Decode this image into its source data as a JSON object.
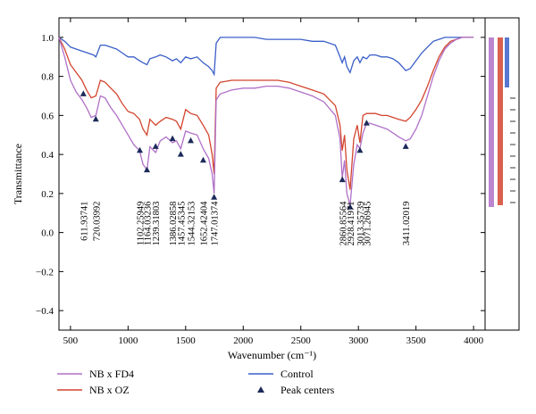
{
  "chart_data": {
    "type": "line",
    "xlabel": "Wavenumber (cm⁻¹)",
    "ylabel": "Transmittance",
    "xlim": [
      400,
      4100
    ],
    "ylim": [
      -0.5,
      1.1
    ],
    "xticks": [
      "500",
      "1000",
      "1500",
      "2000",
      "2500",
      "3000",
      "3500",
      "4000"
    ],
    "yticks": [
      "−0.4",
      "−0.2",
      "0.0",
      "0.2",
      "0.4",
      "0.6",
      "0.8",
      "1.0"
    ],
    "legend_position": "bottom",
    "series": [
      {
        "name": "Control",
        "color": "#3a5fc8",
        "x": [
          400,
          450,
          500,
          550,
          600,
          650,
          700,
          720,
          760,
          800,
          850,
          900,
          950,
          1000,
          1050,
          1100,
          1130,
          1164,
          1190,
          1239,
          1280,
          1330,
          1386,
          1420,
          1457,
          1500,
          1544,
          1600,
          1652,
          1700,
          1730,
          1747,
          1765,
          1800,
          1900,
          2000,
          2100,
          2200,
          2300,
          2400,
          2500,
          2600,
          2700,
          2800,
          2840,
          2860,
          2880,
          2900,
          2928,
          2960,
          2990,
          3013,
          3040,
          3071,
          3100,
          3150,
          3200,
          3250,
          3300,
          3350,
          3411,
          3450,
          3500,
          3550,
          3600,
          3650,
          3700,
          3750,
          3800,
          3850,
          3900,
          3950,
          4000
        ],
        "y": [
          1.0,
          0.98,
          0.95,
          0.94,
          0.93,
          0.92,
          0.91,
          0.9,
          0.96,
          0.96,
          0.95,
          0.94,
          0.92,
          0.9,
          0.9,
          0.88,
          0.87,
          0.86,
          0.89,
          0.9,
          0.91,
          0.9,
          0.88,
          0.89,
          0.87,
          0.9,
          0.89,
          0.9,
          0.87,
          0.85,
          0.83,
          0.81,
          0.97,
          1.0,
          1.0,
          1.0,
          1.0,
          0.99,
          0.99,
          0.99,
          0.99,
          0.98,
          0.98,
          0.96,
          0.9,
          0.87,
          0.9,
          0.85,
          0.82,
          0.88,
          0.9,
          0.87,
          0.9,
          0.89,
          0.91,
          0.91,
          0.9,
          0.9,
          0.89,
          0.87,
          0.83,
          0.84,
          0.88,
          0.92,
          0.95,
          0.98,
          0.99,
          1.0,
          1.0,
          1.0,
          1.0,
          1.0,
          1.0
        ]
      },
      {
        "name": "NB x OZ",
        "color": "#d2452e",
        "x": [
          400,
          450,
          500,
          550,
          600,
          640,
          680,
          720,
          760,
          800,
          850,
          900,
          950,
          1000,
          1050,
          1100,
          1130,
          1164,
          1190,
          1239,
          1280,
          1330,
          1386,
          1420,
          1457,
          1500,
          1544,
          1600,
          1652,
          1700,
          1730,
          1747,
          1765,
          1800,
          1900,
          2000,
          2100,
          2200,
          2300,
          2400,
          2500,
          2600,
          2700,
          2800,
          2840,
          2860,
          2880,
          2900,
          2928,
          2960,
          2990,
          3013,
          3040,
          3071,
          3100,
          3150,
          3200,
          3250,
          3300,
          3350,
          3411,
          3450,
          3500,
          3550,
          3600,
          3650,
          3700,
          3750,
          3800,
          3850,
          3900,
          3950,
          4000
        ],
        "y": [
          1.0,
          0.94,
          0.86,
          0.82,
          0.78,
          0.73,
          0.69,
          0.7,
          0.78,
          0.77,
          0.74,
          0.71,
          0.66,
          0.62,
          0.61,
          0.58,
          0.53,
          0.5,
          0.58,
          0.55,
          0.57,
          0.59,
          0.58,
          0.57,
          0.53,
          0.63,
          0.61,
          0.6,
          0.55,
          0.5,
          0.4,
          0.3,
          0.74,
          0.77,
          0.78,
          0.78,
          0.78,
          0.78,
          0.78,
          0.77,
          0.75,
          0.73,
          0.71,
          0.65,
          0.55,
          0.42,
          0.5,
          0.32,
          0.22,
          0.48,
          0.55,
          0.46,
          0.6,
          0.61,
          0.61,
          0.61,
          0.6,
          0.6,
          0.59,
          0.58,
          0.57,
          0.59,
          0.63,
          0.68,
          0.75,
          0.83,
          0.9,
          0.95,
          0.98,
          0.99,
          1.0,
          1.0,
          1.0
        ]
      },
      {
        "name": "NB x FD4",
        "color": "#b070c8",
        "x": [
          400,
          450,
          500,
          550,
          600,
          640,
          680,
          720,
          760,
          800,
          850,
          900,
          950,
          1000,
          1050,
          1100,
          1130,
          1164,
          1190,
          1239,
          1280,
          1330,
          1386,
          1420,
          1457,
          1500,
          1544,
          1600,
          1652,
          1700,
          1730,
          1747,
          1765,
          1800,
          1900,
          2000,
          2100,
          2200,
          2300,
          2400,
          2500,
          2600,
          2700,
          2800,
          2840,
          2860,
          2880,
          2900,
          2928,
          2960,
          2990,
          3013,
          3040,
          3071,
          3100,
          3150,
          3200,
          3250,
          3300,
          3350,
          3411,
          3450,
          3500,
          3550,
          3600,
          3650,
          3700,
          3750,
          3800,
          3850,
          3900,
          3950,
          4000
        ],
        "y": [
          1.0,
          0.9,
          0.78,
          0.72,
          0.68,
          0.64,
          0.59,
          0.6,
          0.7,
          0.69,
          0.64,
          0.6,
          0.55,
          0.5,
          0.45,
          0.42,
          0.35,
          0.32,
          0.44,
          0.41,
          0.47,
          0.49,
          0.46,
          0.47,
          0.43,
          0.52,
          0.51,
          0.5,
          0.43,
          0.38,
          0.3,
          0.2,
          0.68,
          0.71,
          0.73,
          0.74,
          0.74,
          0.75,
          0.75,
          0.74,
          0.72,
          0.7,
          0.67,
          0.6,
          0.48,
          0.28,
          0.37,
          0.2,
          0.14,
          0.35,
          0.45,
          0.43,
          0.51,
          0.56,
          0.56,
          0.55,
          0.54,
          0.53,
          0.51,
          0.49,
          0.47,
          0.48,
          0.53,
          0.6,
          0.7,
          0.8,
          0.88,
          0.94,
          0.97,
          0.99,
          1.0,
          1.0,
          1.0
        ]
      }
    ],
    "peak_centers": {
      "name": "Peak centers",
      "color": "#1c2a5a",
      "x": [
        611.93741,
        720.03992,
        1102.25949,
        1164.03236,
        1239.31803,
        1386.02858,
        1457.45345,
        1544.32153,
        1652.42404,
        1747.01374,
        2860.85564,
        2928.41971,
        3013.35739,
        3071.26945,
        3411.02019
      ],
      "y": [
        0.71,
        0.58,
        0.42,
        0.32,
        0.44,
        0.48,
        0.4,
        0.47,
        0.37,
        0.18,
        0.27,
        0.13,
        0.42,
        0.56,
        0.44
      ],
      "labels": [
        "611.93741",
        "720.03992",
        "1102.25949",
        "1164.03236",
        "1239.31803",
        "1386.02858",
        "1457.45345",
        "1544.32153",
        "1652.42404",
        "1747.01374",
        "2860.85564",
        "2928.41971",
        "3013.35739",
        "3071.26945",
        "3411.02019"
      ]
    },
    "side_strip_colors": [
      "#b070c8",
      "#d2452e",
      "#3a5fc8"
    ]
  }
}
